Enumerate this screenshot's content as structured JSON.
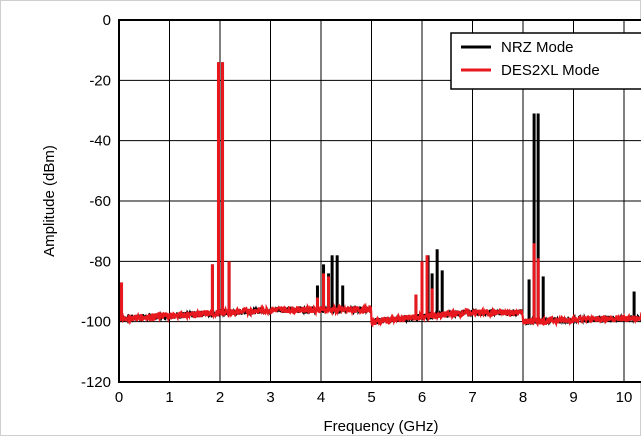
{
  "chart_data": {
    "type": "line",
    "xlabel": "Frequency (GHz)",
    "ylabel": "Amplitude (dBm)",
    "xlim": [
      0,
      10.4
    ],
    "ylim": [
      -120,
      0
    ],
    "xticks": [
      "0",
      "1",
      "2",
      "3",
      "4",
      "5",
      "6",
      "7",
      "8",
      "9",
      "10"
    ],
    "yticks": [
      "0",
      "-20",
      "-40",
      "-60",
      "-80",
      "-100",
      "-120"
    ],
    "grid": true,
    "legend_position": "top-right",
    "noise_floor": {
      "segments": [
        {
          "x_start": 0.0,
          "x_end": 5.0,
          "level_start": -99,
          "level_end": -96
        },
        {
          "x_start": 5.0,
          "x_end": 8.0,
          "level_start": -100,
          "level_end": -97
        },
        {
          "x_start": 8.0,
          "x_end": 10.4,
          "level_start": -100,
          "level_end": -99
        }
      ]
    },
    "series": [
      {
        "name": "NRZ Mode",
        "color": "#000000",
        "peaks": [
          {
            "x": 0.05,
            "y": -87
          },
          {
            "x": 1.85,
            "y": -81
          },
          {
            "x": 1.97,
            "y": -14
          },
          {
            "x": 2.05,
            "y": -14
          },
          {
            "x": 2.18,
            "y": -80
          },
          {
            "x": 3.93,
            "y": -88
          },
          {
            "x": 4.05,
            "y": -81
          },
          {
            "x": 4.15,
            "y": -84
          },
          {
            "x": 4.22,
            "y": -78
          },
          {
            "x": 4.32,
            "y": -78
          },
          {
            "x": 4.43,
            "y": -88
          },
          {
            "x": 5.88,
            "y": -91
          },
          {
            "x": 6.0,
            "y": -80
          },
          {
            "x": 6.12,
            "y": -78
          },
          {
            "x": 6.2,
            "y": -84
          },
          {
            "x": 6.3,
            "y": -76
          },
          {
            "x": 6.4,
            "y": -83
          },
          {
            "x": 8.12,
            "y": -86
          },
          {
            "x": 8.22,
            "y": -31
          },
          {
            "x": 8.3,
            "y": -31
          },
          {
            "x": 8.4,
            "y": -85
          },
          {
            "x": 10.2,
            "y": -90
          }
        ]
      },
      {
        "name": "DES2XL Mode",
        "color": "#e8191e",
        "peaks": [
          {
            "x": 0.05,
            "y": -87
          },
          {
            "x": 1.85,
            "y": -81
          },
          {
            "x": 1.97,
            "y": -14
          },
          {
            "x": 2.05,
            "y": -14
          },
          {
            "x": 2.18,
            "y": -80
          },
          {
            "x": 3.93,
            "y": -92
          },
          {
            "x": 4.05,
            "y": -84
          },
          {
            "x": 4.15,
            "y": -85
          },
          {
            "x": 5.88,
            "y": -91
          },
          {
            "x": 6.0,
            "y": -80
          },
          {
            "x": 6.1,
            "y": -78
          },
          {
            "x": 6.2,
            "y": -89
          },
          {
            "x": 8.22,
            "y": -74
          },
          {
            "x": 8.3,
            "y": -79
          }
        ]
      }
    ]
  }
}
